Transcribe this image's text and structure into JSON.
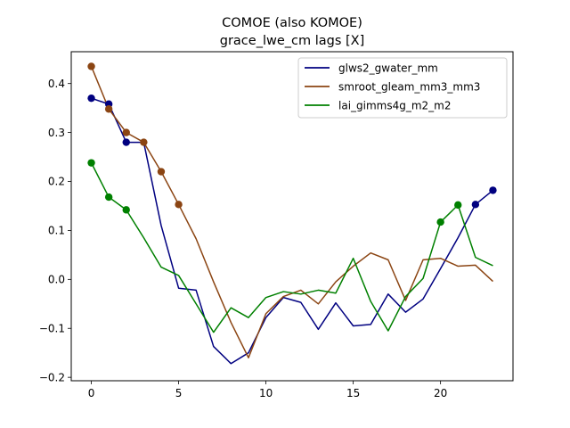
{
  "chart_data": {
    "type": "line",
    "title": "COMOE (also KOMOE)",
    "subtitle": "grace_lwe_cm lags [X]",
    "xlabel": "",
    "ylabel": "",
    "xlim": [
      -1.15,
      24.15
    ],
    "ylim": [
      -0.207,
      0.465
    ],
    "xticks": [
      0,
      5,
      10,
      15,
      20
    ],
    "yticks": [
      -0.2,
      -0.1,
      0.0,
      0.1,
      0.2,
      0.3,
      0.4
    ],
    "ytick_labels": [
      "−0.2",
      "−0.1",
      "0.0",
      "0.1",
      "0.2",
      "0.3",
      "0.4"
    ],
    "grid": false,
    "legend_position": "top-right",
    "x": [
      0,
      1,
      2,
      3,
      4,
      5,
      6,
      7,
      8,
      9,
      10,
      11,
      12,
      13,
      14,
      15,
      16,
      17,
      18,
      19,
      20,
      21,
      22,
      23
    ],
    "series": [
      {
        "name": "glws2_gwater_mm",
        "color": "#000080",
        "values": [
          0.37,
          0.358,
          0.28,
          0.28,
          0.11,
          -0.018,
          -0.022,
          -0.137,
          -0.172,
          -0.15,
          -0.078,
          -0.037,
          -0.047,
          -0.102,
          -0.048,
          -0.095,
          -0.092,
          -0.03,
          -0.067,
          -0.04,
          0.022,
          0.085,
          0.153,
          0.182
        ],
        "markers": [
          0,
          1,
          2,
          22,
          23
        ]
      },
      {
        "name": "smroot_gleam_mm3_mm3",
        "color": "#8b4513",
        "values": [
          0.435,
          0.348,
          0.3,
          0.28,
          0.22,
          0.153,
          0.083,
          -0.005,
          -0.088,
          -0.16,
          -0.07,
          -0.035,
          -0.022,
          -0.05,
          -0.005,
          0.027,
          0.054,
          0.04,
          -0.043,
          0.04,
          0.043,
          0.027,
          0.029,
          -0.004
        ],
        "markers": [
          0,
          1,
          2,
          3,
          4,
          5
        ]
      },
      {
        "name": "lai_gimms4g_m2_m2",
        "color": "#008000",
        "values": [
          0.238,
          0.168,
          0.142,
          0.085,
          0.025,
          0.008,
          -0.05,
          -0.108,
          -0.058,
          -0.078,
          -0.037,
          -0.025,
          -0.03,
          -0.022,
          -0.028,
          0.043,
          -0.045,
          -0.105,
          -0.035,
          0.002,
          0.117,
          0.152,
          0.045,
          0.028
        ],
        "markers": [
          0,
          1,
          2,
          20,
          21
        ]
      }
    ]
  }
}
